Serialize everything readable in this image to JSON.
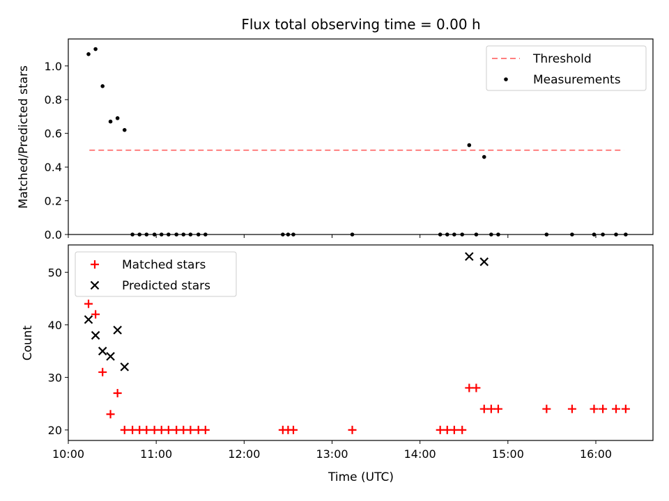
{
  "chart_data": [
    {
      "type": "scatter",
      "title": "Flux total observing time = 0.00 h",
      "xlabel": "",
      "ylabel": "Matched/Predicted stars",
      "xlim": [
        10.0,
        16.65
      ],
      "ylim": [
        0.0,
        1.16
      ],
      "yticks": [
        0.0,
        0.2,
        0.4,
        0.6,
        0.8,
        1.0
      ],
      "ytick_labels": [
        "0.0",
        "0.2",
        "0.4",
        "0.6",
        "0.8",
        "1.0"
      ],
      "legend_position": "top-right",
      "series": [
        {
          "name": "Threshold",
          "style": "dashed-line",
          "color": "#ff7f7f",
          "x": [
            10.24,
            16.32
          ],
          "y": [
            0.5,
            0.5
          ]
        },
        {
          "name": "Measurements",
          "style": "dot",
          "color": "#000000",
          "x": [
            10.23,
            10.31,
            10.39,
            10.48,
            10.56,
            10.64,
            10.73,
            10.81,
            10.89,
            10.98,
            11.06,
            11.14,
            11.23,
            11.31,
            11.39,
            11.48,
            11.56,
            12.44,
            12.5,
            12.56,
            13.23,
            14.23,
            14.31,
            14.39,
            14.48,
            14.56,
            14.64,
            14.73,
            14.81,
            14.89,
            15.44,
            15.73,
            15.98,
            16.08,
            16.23,
            16.34
          ],
          "y": [
            1.07,
            1.1,
            0.88,
            0.67,
            0.69,
            0.62,
            0.0,
            0.0,
            0.0,
            0.0,
            0.0,
            0.0,
            0.0,
            0.0,
            0.0,
            0.0,
            0.0,
            0.0,
            0.0,
            0.0,
            0.0,
            0.0,
            0.0,
            0.0,
            0.0,
            0.53,
            0.0,
            0.46,
            0.0,
            0.0,
            0.0,
            0.0,
            0.0,
            0.0,
            0.0,
            0.0
          ]
        }
      ]
    },
    {
      "type": "scatter",
      "title": "",
      "xlabel": "Time (UTC)",
      "ylabel": "Count",
      "xlim": [
        10.0,
        16.65
      ],
      "ylim": [
        18.0,
        55.2
      ],
      "xticks": [
        10,
        11,
        12,
        13,
        14,
        15,
        16
      ],
      "xtick_labels": [
        "10:00",
        "11:00",
        "12:00",
        "13:00",
        "14:00",
        "15:00",
        "16:00"
      ],
      "yticks": [
        20,
        30,
        40,
        50
      ],
      "ytick_labels": [
        "20",
        "30",
        "40",
        "50"
      ],
      "legend_position": "top-left",
      "series": [
        {
          "name": "Matched stars",
          "style": "plus",
          "color": "#ff0000",
          "x": [
            10.23,
            10.31,
            10.39,
            10.48,
            10.56,
            10.64,
            10.73,
            10.81,
            10.89,
            10.98,
            11.06,
            11.14,
            11.23,
            11.31,
            11.39,
            11.48,
            11.56,
            12.44,
            12.5,
            12.56,
            13.23,
            14.23,
            14.31,
            14.39,
            14.48,
            14.56,
            14.64,
            14.73,
            14.81,
            14.89,
            15.44,
            15.73,
            15.98,
            16.08,
            16.23,
            16.34
          ],
          "y": [
            44,
            42,
            31,
            23,
            27,
            20,
            20,
            20,
            20,
            20,
            20,
            20,
            20,
            20,
            20,
            20,
            20,
            20,
            20,
            20,
            20,
            20,
            20,
            20,
            20,
            28,
            28,
            24,
            24,
            24,
            24,
            24,
            24,
            24,
            24,
            24
          ]
        },
        {
          "name": "Predicted stars",
          "style": "x",
          "color": "#000000",
          "x": [
            10.23,
            10.31,
            10.39,
            10.48,
            10.56,
            10.64,
            14.56,
            14.73
          ],
          "y": [
            41,
            38,
            35,
            34,
            39,
            32,
            53,
            52
          ]
        }
      ]
    }
  ]
}
